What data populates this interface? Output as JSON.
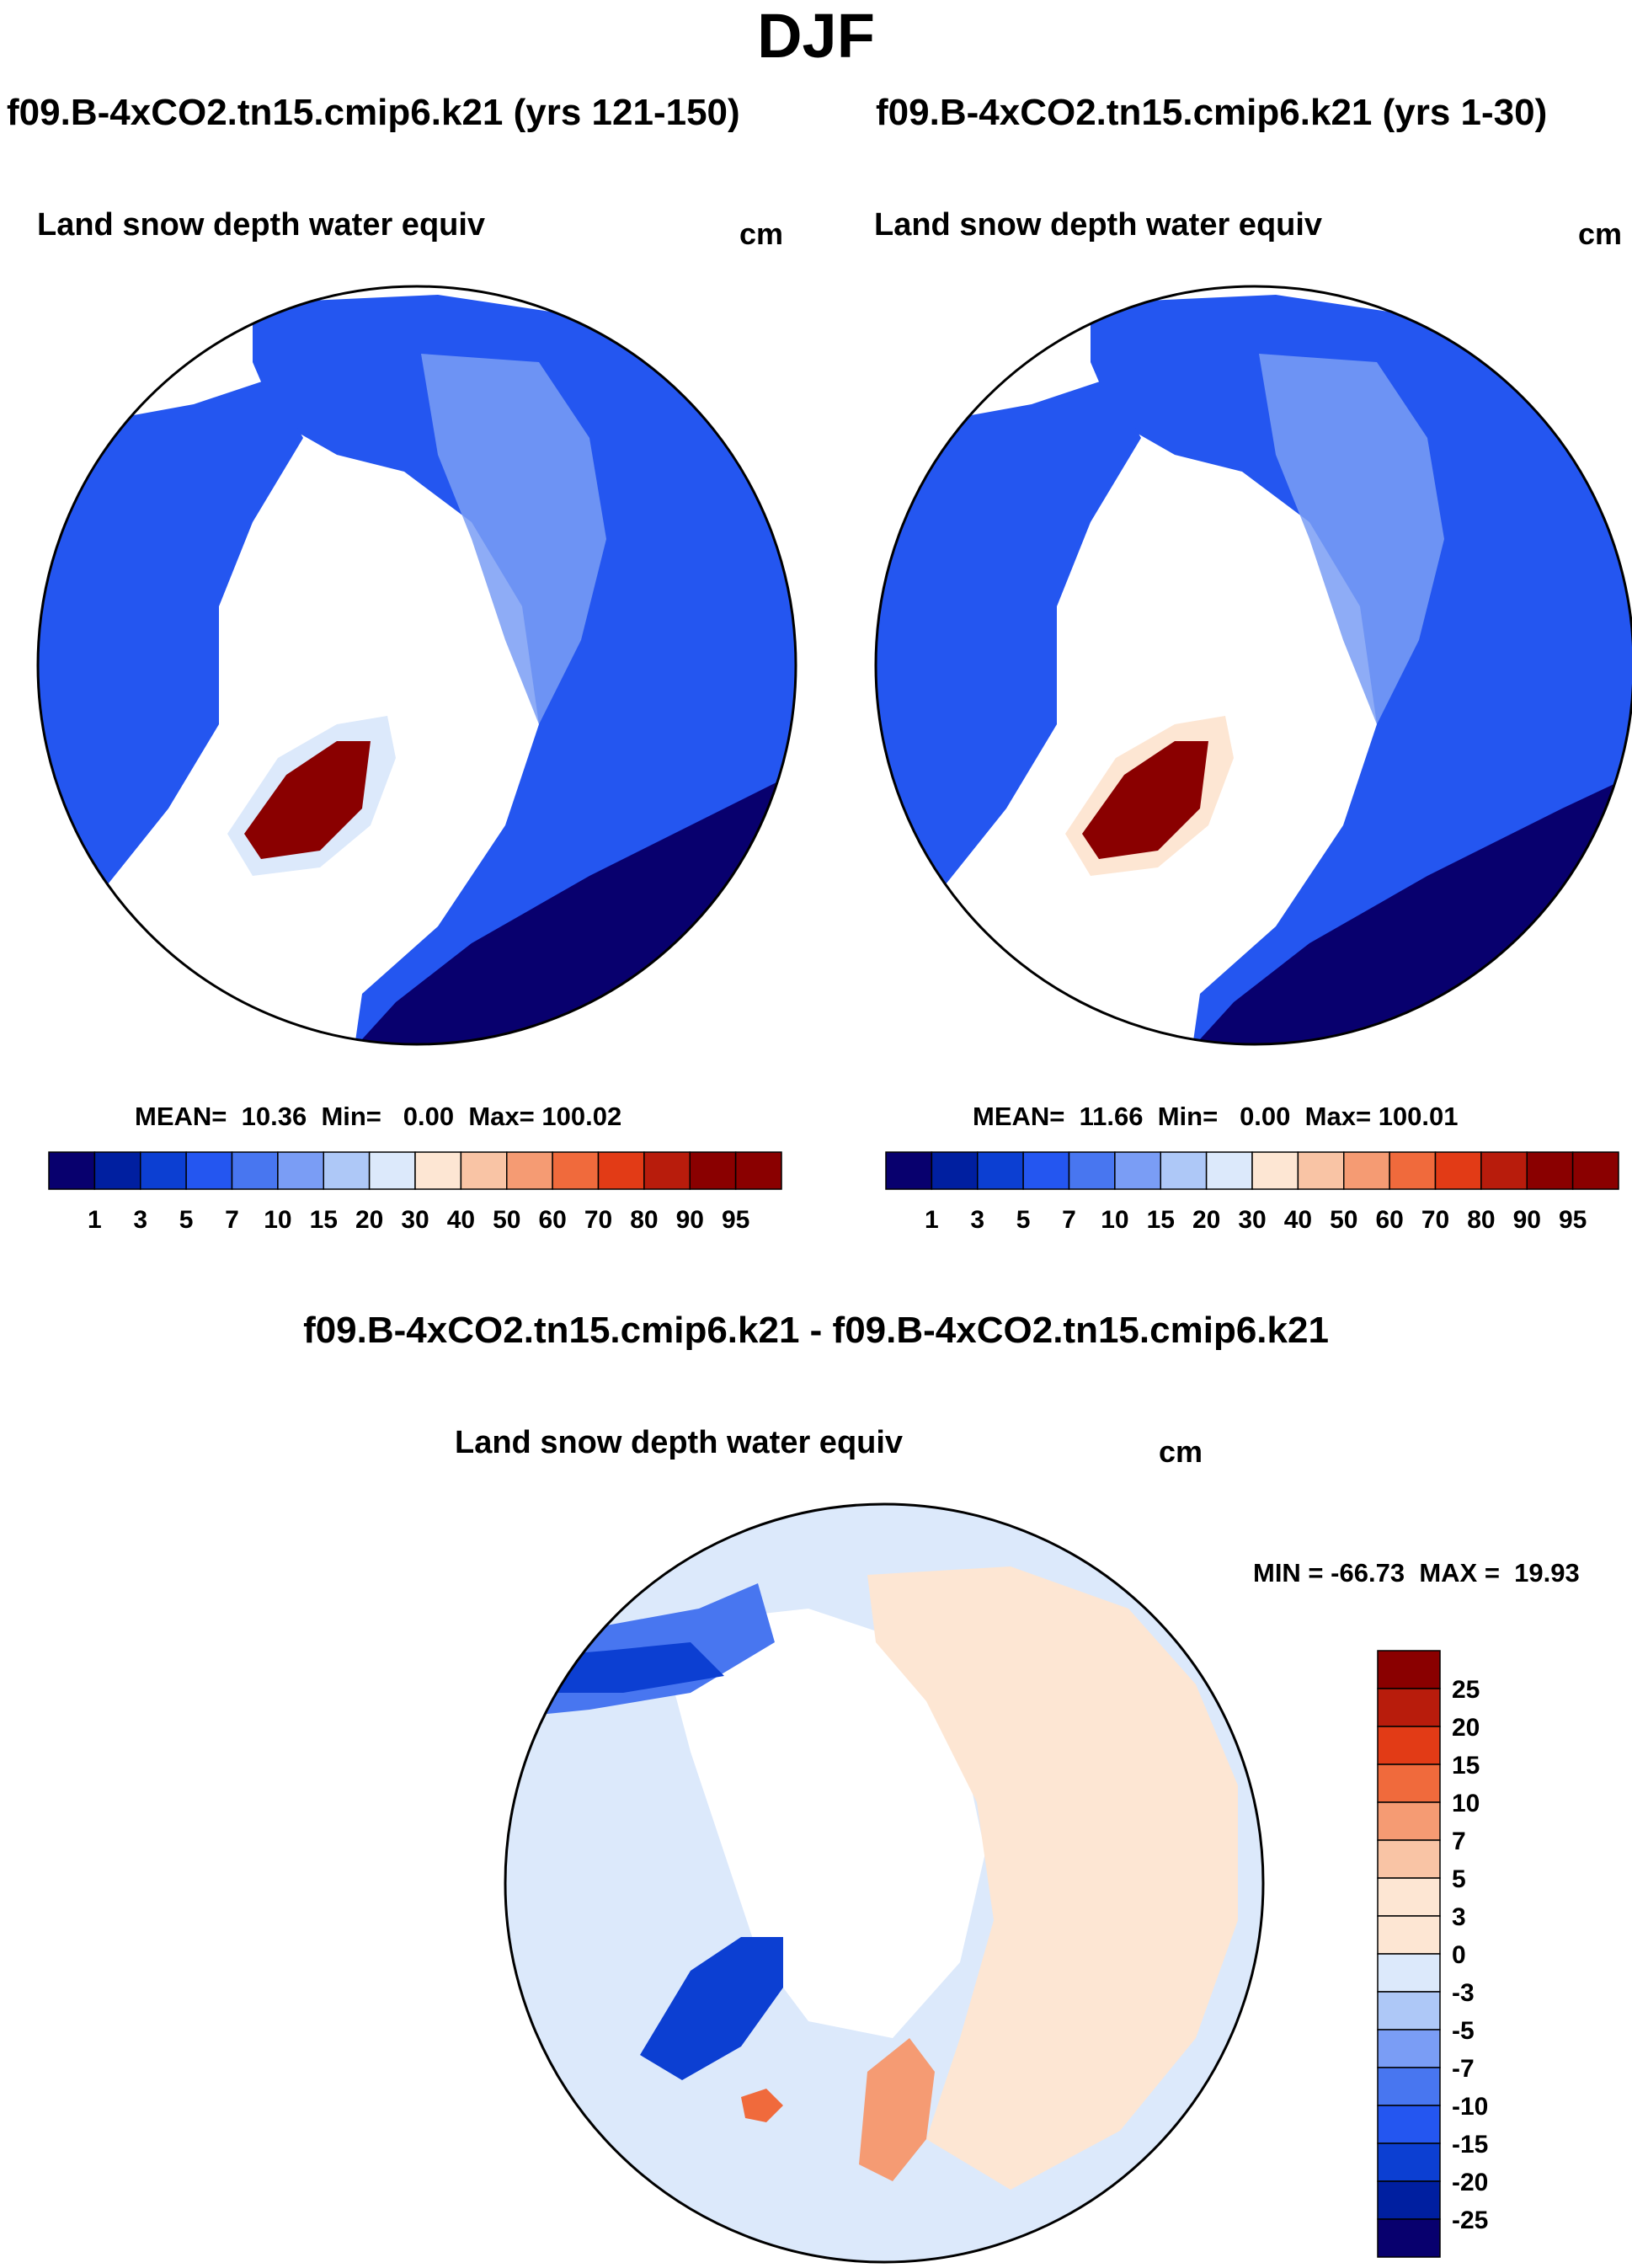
{
  "chart_data": {
    "type": "heatmap",
    "season": "DJF",
    "projection": "north-polar-stereographic",
    "panels": [
      {
        "id": "top-left",
        "case_title": "f09.B-4xCO2.tn15.cmip6.k21 (yrs 121-150)",
        "field": "Land snow depth water equiv",
        "units": "cm",
        "stats": {
          "mean_label": "MEAN=",
          "mean": "10.36",
          "min_label": "Min=",
          "min": "0.00",
          "max_label": "Max=",
          "max": "100.02"
        },
        "colorbar": {
          "orientation": "horizontal",
          "ticks": [
            "1",
            "3",
            "5",
            "7",
            "10",
            "15",
            "20",
            "30",
            "40",
            "50",
            "60",
            "70",
            "80",
            "90",
            "95"
          ],
          "colors": [
            "#08006e",
            "#001fa0",
            "#0c3fd2",
            "#2456f0",
            "#4876f0",
            "#7a9df5",
            "#aec8f7",
            "#dce9fb",
            "#fde6d3",
            "#f9c4a5",
            "#f59b73",
            "#f06a3c",
            "#e23b16",
            "#b81c0c",
            "#8a0000"
          ]
        }
      },
      {
        "id": "top-right",
        "case_title": "f09.B-4xCO2.tn15.cmip6.k21 (yrs 1-30)",
        "field": "Land snow depth water equiv",
        "units": "cm",
        "stats": {
          "mean_label": "MEAN=",
          "mean": "11.66",
          "min_label": "Min=",
          "min": "0.00",
          "max_label": "Max=",
          "max": "100.01"
        },
        "colorbar": {
          "orientation": "horizontal",
          "ticks": [
            "1",
            "3",
            "5",
            "7",
            "10",
            "15",
            "20",
            "30",
            "40",
            "50",
            "60",
            "70",
            "80",
            "90",
            "95"
          ],
          "colors": [
            "#08006e",
            "#001fa0",
            "#0c3fd2",
            "#2456f0",
            "#4876f0",
            "#7a9df5",
            "#aec8f7",
            "#dce9fb",
            "#fde6d3",
            "#f9c4a5",
            "#f59b73",
            "#f06a3c",
            "#e23b16",
            "#b81c0c",
            "#8a0000"
          ]
        }
      },
      {
        "id": "bottom-diff",
        "case_title": "f09.B-4xCO2.tn15.cmip6.k21 - f09.B-4xCO2.tn15.cmip6.k21",
        "field": "Land snow depth water equiv",
        "units": "cm",
        "stats": {
          "min_label": "MIN =",
          "min": "-66.73",
          "max_label": "MAX =",
          "max": "19.93"
        },
        "colorbar": {
          "orientation": "vertical",
          "ticks": [
            "25",
            "20",
            "15",
            "10",
            "7",
            "5",
            "3",
            "0",
            "-3",
            "-5",
            "-7",
            "-10",
            "-15",
            "-20",
            "-25"
          ],
          "colors": [
            "#8a0000",
            "#b81c0c",
            "#e23b16",
            "#f06a3c",
            "#f59b73",
            "#f9c4a5",
            "#fde6d3",
            "#fde6d3",
            "#dce9fb",
            "#aec8f7",
            "#7a9df5",
            "#4876f0",
            "#2456f0",
            "#0c3fd2",
            "#001fa0",
            "#08006e"
          ]
        }
      }
    ]
  }
}
